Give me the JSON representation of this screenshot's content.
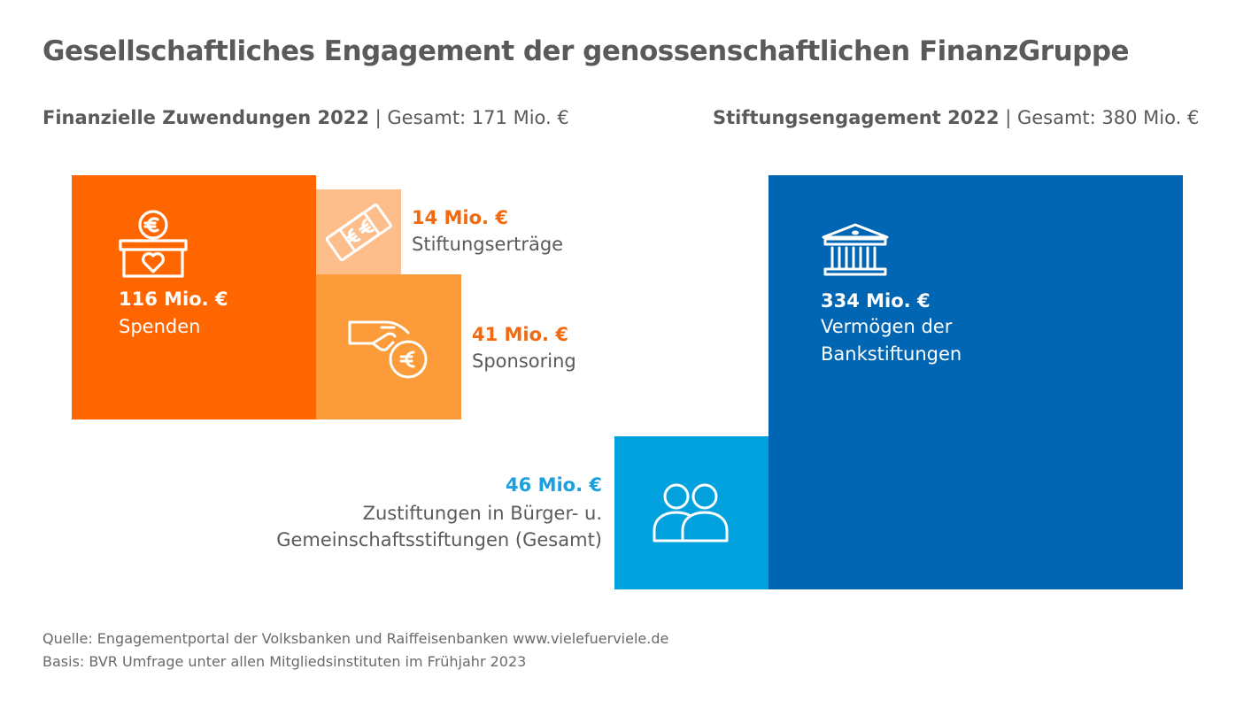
{
  "title": "Gesellschaftliches Engagement der genossenschaftlichen FinanzGruppe",
  "colors": {
    "orange": "#ff6600",
    "orange_mid": "#fb9b39",
    "orange_light": "#fdbe8b",
    "blue_dark": "#0066b3",
    "blue_light": "#00a1dd",
    "text_orange": "#f26a10",
    "text_cyan": "#1aa0dc",
    "text_grey": "#5a5a5a"
  },
  "chart_data": [
    {
      "type": "treemap",
      "title": "Finanzielle Zuwendungen 2022",
      "total_label": "Gesamt: 171 Mio. €",
      "total": 171,
      "unit": "Mio. €",
      "items": [
        {
          "value": 116,
          "value_label": "116 Mio. €",
          "name": "Spenden",
          "icon": "donation-box-heart-icon"
        },
        {
          "value": 14,
          "value_label": "14 Mio. €",
          "name": "Stiftungserträge",
          "icon": "banknotes-euro-icon"
        },
        {
          "value": 41,
          "value_label": "41 Mio. €",
          "name": "Sponsoring",
          "icon": "hand-coin-euro-icon"
        }
      ]
    },
    {
      "type": "treemap",
      "title": "Stiftungsengagement 2022",
      "total_label": "Gesamt: 380 Mio. €",
      "total": 380,
      "unit": "Mio. €",
      "items": [
        {
          "value": 334,
          "value_label": "334 Mio. €",
          "name_lines": [
            "Vermögen der",
            "Bankstiftungen"
          ],
          "icon": "bank-building-icon"
        },
        {
          "value": 46,
          "value_label": "46 Mio. €",
          "name_lines": [
            "Zustiftungen in Bürger- u.",
            "Gemeinschaftsstiftungen (Gesamt)"
          ],
          "icon": "people-group-icon"
        }
      ]
    }
  ],
  "footer": {
    "source": "Quelle: Engagementportal der Volksbanken und Raiffeisenbanken www.vielefuerviele.de",
    "basis": "Basis: BVR Umfrage unter allen Mitgliedsinstituten im Frühjahr 2023"
  }
}
